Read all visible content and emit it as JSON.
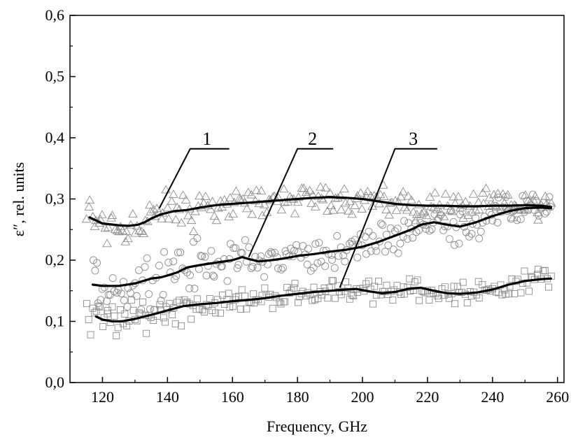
{
  "chart_data": {
    "type": "scatter",
    "title": "",
    "xlabel": "Frequency, GHz",
    "ylabel": "ε″, rel. units",
    "xlim": [
      110,
      262
    ],
    "ylim": [
      0.0,
      0.6
    ],
    "xticks": [
      120,
      140,
      160,
      180,
      200,
      220,
      240,
      260
    ],
    "xtick_labels": [
      "120",
      "140",
      "160",
      "180",
      "200",
      "220",
      "240",
      "260"
    ],
    "yticks": [
      0.0,
      0.1,
      0.2,
      0.3,
      0.4,
      0.5,
      0.6
    ],
    "ytick_labels": [
      "0,0",
      "0,1",
      "0,2",
      "0,3",
      "0,4",
      "0,5",
      "0,6"
    ],
    "grid": false,
    "legend": "none",
    "series": [
      {
        "label": "1",
        "marker": "triangle",
        "curve": {
          "x": [
            116,
            120,
            125,
            128,
            131,
            133,
            135,
            138,
            142,
            146,
            150,
            155,
            160,
            165,
            170,
            175,
            180,
            185,
            190,
            195,
            200,
            205,
            210,
            215,
            220,
            225,
            230,
            235,
            240,
            245,
            250,
            255,
            258
          ],
          "y": [
            0.27,
            0.26,
            0.257,
            0.256,
            0.258,
            0.262,
            0.268,
            0.275,
            0.28,
            0.282,
            0.286,
            0.29,
            0.292,
            0.294,
            0.296,
            0.298,
            0.3,
            0.302,
            0.303,
            0.302,
            0.3,
            0.296,
            0.292,
            0.29,
            0.289,
            0.289,
            0.288,
            0.288,
            0.289,
            0.289,
            0.29,
            0.289,
            0.287
          ]
        },
        "points": {
          "x_range": [
            115,
            258
          ],
          "y_spread": 0.03,
          "count": 230
        }
      },
      {
        "label": "2",
        "marker": "circle",
        "curve": {
          "x": [
            117,
            120,
            125,
            130,
            135,
            138,
            140,
            143,
            146,
            150,
            155,
            160,
            163,
            165,
            168,
            172,
            176,
            180,
            185,
            190,
            195,
            200,
            205,
            210,
            215,
            218,
            222,
            226,
            230,
            235,
            240,
            245,
            250,
            255,
            258
          ],
          "y": [
            0.16,
            0.158,
            0.158,
            0.162,
            0.17,
            0.172,
            0.175,
            0.18,
            0.188,
            0.192,
            0.196,
            0.2,
            0.205,
            0.202,
            0.198,
            0.2,
            0.203,
            0.207,
            0.21,
            0.214,
            0.217,
            0.222,
            0.23,
            0.24,
            0.25,
            0.258,
            0.262,
            0.258,
            0.255,
            0.262,
            0.272,
            0.28,
            0.285,
            0.286,
            0.285
          ]
        },
        "points": {
          "x_range": [
            117,
            258
          ],
          "y_spread": 0.035,
          "count": 230
        }
      },
      {
        "label": "3",
        "marker": "square",
        "curve": {
          "x": [
            118,
            120,
            123,
            126,
            130,
            133,
            136,
            140,
            145,
            150,
            155,
            160,
            165,
            170,
            175,
            180,
            185,
            190,
            195,
            198,
            202,
            206,
            210,
            214,
            218,
            222,
            226,
            230,
            235,
            240,
            245,
            250,
            255,
            258
          ],
          "y": [
            0.108,
            0.103,
            0.1,
            0.1,
            0.104,
            0.108,
            0.112,
            0.118,
            0.125,
            0.128,
            0.13,
            0.133,
            0.135,
            0.138,
            0.142,
            0.145,
            0.148,
            0.15,
            0.152,
            0.153,
            0.149,
            0.146,
            0.148,
            0.153,
            0.155,
            0.15,
            0.146,
            0.145,
            0.147,
            0.152,
            0.16,
            0.166,
            0.169,
            0.17
          ]
        },
        "points": {
          "x_range": [
            115,
            258
          ],
          "y_spread": 0.022,
          "count": 230
        }
      }
    ],
    "annotations": [
      {
        "text": "1",
        "leader_from": [
          137.5,
          0.285
        ],
        "leader_to": [
          147,
          0.382
        ],
        "line_end_x": 159
      },
      {
        "text": "2",
        "leader_from": [
          165,
          0.205
        ],
        "leader_to": [
          180,
          0.382
        ],
        "line_end_x": 191
      },
      {
        "text": "3",
        "leader_from": [
          193,
          0.155
        ],
        "leader_to": [
          210,
          0.382
        ],
        "line_end_x": 223
      }
    ],
    "colors": {
      "curve": "#000000",
      "markers": "#8c8c8c",
      "axis": "#000000"
    }
  }
}
